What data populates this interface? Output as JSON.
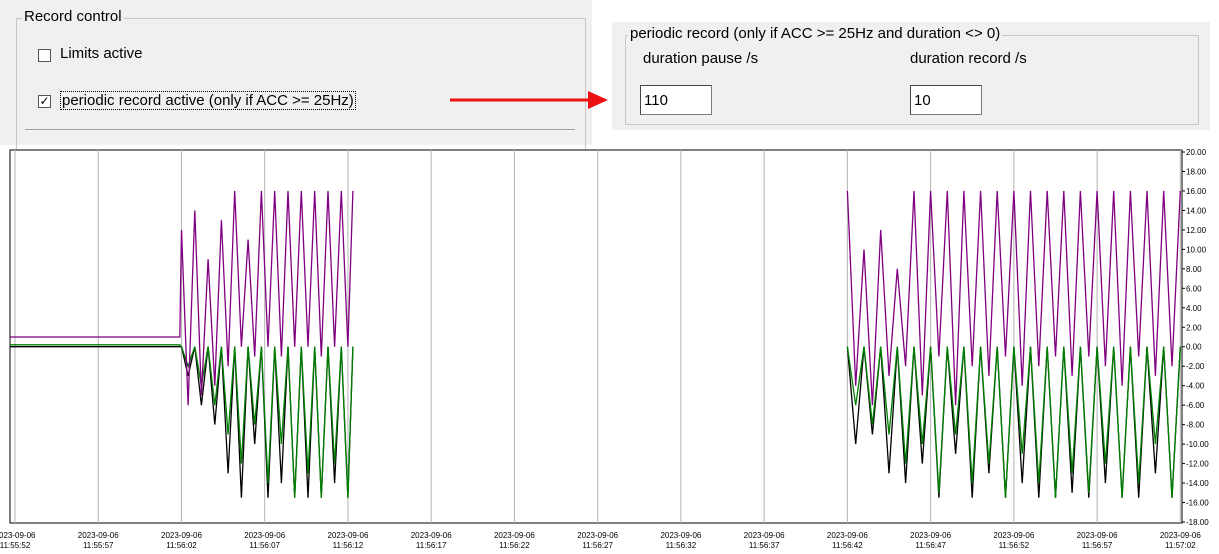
{
  "ui": {
    "record_control": {
      "title": "Record control",
      "limits": "Limits active",
      "limits_checked": false,
      "periodic": "periodic record active (only if ACC >= 25Hz)",
      "periodic_checked": true
    },
    "periodic_record": {
      "title": "periodic record  (only if ACC >= 25Hz and duration <> 0)",
      "pause_label": "duration pause /s",
      "pause_value": "110",
      "record_label": "duration record /s",
      "record_value": "10"
    }
  },
  "chart_data": {
    "type": "line",
    "x": [
      "11:55:51.7",
      "11:56:01.9",
      "11:56:02.0",
      "11:56:02.4",
      "11:56:02.8",
      "11:56:03.2",
      "11:56:03.6",
      "11:56:04.0",
      "11:56:04.4",
      "11:56:04.8",
      "11:56:05.2",
      "11:56:05.6",
      "11:56:06.0",
      "11:56:06.4",
      "11:56:06.8",
      "11:56:07.2",
      "11:56:07.6",
      "11:56:08.0",
      "11:56:08.4",
      "11:56:08.8",
      "11:56:09.2",
      "11:56:09.6",
      "11:56:10.0",
      "11:56:10.4",
      "11:56:10.8",
      "11:56:11.2",
      "11:56:11.6",
      "11:56:12.0",
      "11:56:12.3",
      "11:56:20.0",
      "11:56:42.0",
      "11:56:42.5",
      "11:56:43.0",
      "11:56:43.5",
      "11:56:44.0",
      "11:56:44.5",
      "11:56:45.0",
      "11:56:45.5",
      "11:56:46.0",
      "11:56:46.5",
      "11:56:47.0",
      "11:56:47.5",
      "11:56:48.0",
      "11:56:48.5",
      "11:56:49.0",
      "11:56:49.5",
      "11:56:50.0",
      "11:56:50.5",
      "11:56:51.0",
      "11:56:51.5",
      "11:56:52.0",
      "11:56:52.5",
      "11:56:53.0",
      "11:56:53.5",
      "11:56:54.0",
      "11:56:54.5",
      "11:56:55.0",
      "11:56:55.5",
      "11:56:56.0",
      "11:56:56.5",
      "11:56:57.0",
      "11:56:57.5",
      "11:56:58.0",
      "11:56:58.5",
      "11:56:59.0",
      "11:56:59.5",
      "11:57:00.0",
      "11:57:00.5",
      "11:57:01.0",
      "11:57:01.5",
      "11:57:02.0"
    ],
    "series": [
      {
        "color": "#000000",
        "values": [
          0,
          0,
          0,
          -3,
          0,
          -6,
          0,
          -8,
          0,
          -13,
          0,
          -15.5,
          0,
          -10,
          0,
          -15.5,
          0,
          -14,
          0,
          -15.5,
          0,
          -15.5,
          0,
          -15.5,
          0,
          -14,
          0,
          -15.5,
          0,
          null,
          0,
          -10,
          0,
          -9,
          0,
          -13,
          0,
          -14,
          0,
          -12,
          0,
          -15.5,
          0,
          -11,
          0,
          -15.5,
          0,
          -13,
          0,
          -15.5,
          0,
          -14,
          0,
          -15.5,
          0,
          -15.5,
          0,
          -15,
          0,
          -15.5,
          0,
          -14,
          0,
          -15.5,
          0,
          -15.5,
          0,
          -13,
          0,
          -15.5,
          0
        ]
      },
      {
        "color": "#008000",
        "values": [
          0.2,
          0.2,
          0,
          -2,
          0,
          -4,
          0,
          -6,
          0,
          -9,
          0,
          -12,
          0,
          -8,
          0,
          -14,
          0,
          -10,
          0,
          -15.5,
          0,
          -13,
          0,
          -15.5,
          0,
          -12,
          0,
          -15.5,
          0,
          null,
          0,
          -6,
          0,
          -8,
          0,
          -9,
          0,
          -12,
          0,
          -10,
          0,
          -15,
          0,
          -9,
          0,
          -14,
          0,
          -12,
          0,
          -15.5,
          0,
          -11,
          0,
          -14,
          0,
          -15.5,
          0,
          -13,
          0,
          -15,
          0,
          -12,
          0,
          -15.5,
          0,
          -14,
          0,
          -10,
          0,
          -15.5,
          0
        ]
      },
      {
        "color": "#800080",
        "values": [
          1,
          1,
          12,
          -6,
          14,
          -5,
          9,
          -4,
          13,
          -2,
          16,
          0,
          11,
          -1,
          16,
          0,
          16,
          -1,
          16,
          0,
          16,
          0,
          16,
          -1,
          16,
          0,
          16,
          0,
          16,
          null,
          16,
          -4,
          10,
          -6,
          12,
          -3,
          8,
          -2,
          16,
          -5,
          16,
          -1,
          16,
          -6,
          16,
          -2,
          16,
          -3,
          16,
          -1,
          16,
          -4,
          16,
          -2,
          16,
          -1,
          16,
          -3,
          16,
          -1,
          16,
          -2,
          16,
          -4,
          16,
          -1,
          16,
          -3,
          16,
          -2,
          16
        ]
      }
    ],
    "xlim": [
      "11:55:51.7",
      "11:57:02.1"
    ],
    "xticks": [
      {
        "value": "11:55:52",
        "label": [
          "2023-09-06",
          "11:55:52"
        ]
      },
      {
        "value": "11:55:57",
        "label": [
          "2023-09-06",
          "11:55:57"
        ]
      },
      {
        "value": "11:56:02",
        "label": [
          "2023-09-06",
          "11:56:02"
        ]
      },
      {
        "value": "11:56:07",
        "label": [
          "2023-09-06",
          "11:56:07"
        ]
      },
      {
        "value": "11:56:12",
        "label": [
          "2023-09-06",
          "11:56:12"
        ]
      },
      {
        "value": "11:56:17",
        "label": [
          "2023-09-06",
          "11:56:17"
        ]
      },
      {
        "value": "11:56:22",
        "label": [
          "2023-09-06",
          "11:56:22"
        ]
      },
      {
        "value": "11:56:27",
        "label": [
          "2023-09-06",
          "11:56:27"
        ]
      },
      {
        "value": "11:56:32",
        "label": [
          "2023-09-06",
          "11:56:32"
        ]
      },
      {
        "value": "11:56:37",
        "label": [
          "2023-09-06",
          "11:56:37"
        ]
      },
      {
        "value": "11:56:42",
        "label": [
          "2023-09-06",
          "11:56:42"
        ]
      },
      {
        "value": "11:56:47",
        "label": [
          "2023-09-06",
          "11:56:47"
        ]
      },
      {
        "value": "11:56:52",
        "label": [
          "2023-09-06",
          "11:56:52"
        ]
      },
      {
        "value": "11:56:57",
        "label": [
          "2023-09-06",
          "11:56:57"
        ]
      },
      {
        "value": "11:57:02",
        "label": [
          "2023-09-06",
          "11:57:02"
        ]
      }
    ],
    "ylim": [
      -18,
      20
    ],
    "yticks": [
      {
        "value": 20,
        "label": "20.00"
      },
      {
        "value": 18,
        "label": "18.00"
      },
      {
        "value": 16,
        "label": "16.00"
      },
      {
        "value": 14,
        "label": "14.00"
      },
      {
        "value": 12,
        "label": "12.00"
      },
      {
        "value": 10,
        "label": "10.00"
      },
      {
        "value": 8,
        "label": "8.00"
      },
      {
        "value": 6,
        "label": "6.00"
      },
      {
        "value": 4,
        "label": "4.00"
      },
      {
        "value": 2,
        "label": "2.00"
      },
      {
        "value": 0,
        "label": "0.00"
      },
      {
        "value": -2,
        "label": "-2.00"
      },
      {
        "value": -4,
        "label": "-4.00"
      },
      {
        "value": -6,
        "label": "-6.00"
      },
      {
        "value": -8,
        "label": "-8.00"
      },
      {
        "value": -10,
        "label": "-10.00"
      },
      {
        "value": -12,
        "label": "-12.00"
      },
      {
        "value": -14,
        "label": "-14.00"
      },
      {
        "value": -16,
        "label": "-16.00"
      },
      {
        "value": -18,
        "label": "-18.00"
      }
    ],
    "grid": true
  }
}
